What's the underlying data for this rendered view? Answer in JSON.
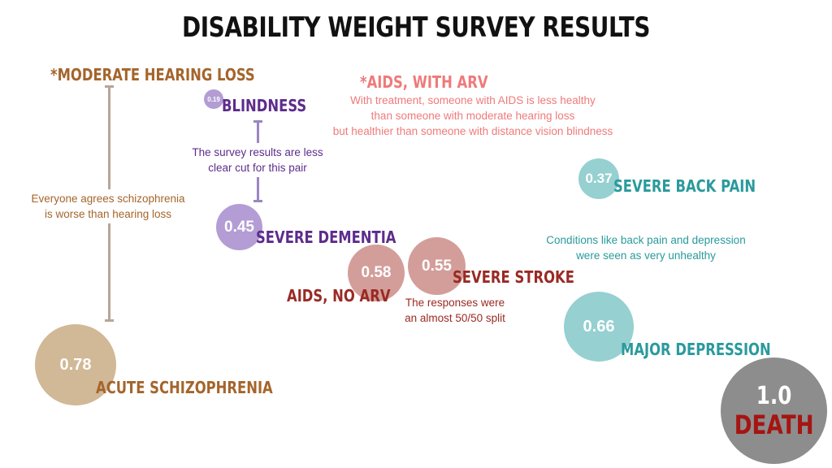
{
  "title": "DISABILITY WEIGHT SURVEY RESULTS",
  "colors": {
    "brown": "#a4652b",
    "brown_circle": "#d1b896",
    "purple": "#5d2c8c",
    "purple_circle": "#b39dd4",
    "red": "#9a2a24",
    "red_circle": "#d39e9a",
    "pink": "#ef7a7a",
    "teal": "#2a9a9c",
    "teal_circle": "#96d0d1",
    "death_circle": "#8d8d8d",
    "death_text": "#a51512"
  },
  "conditions": [
    {
      "id": "moderate-hearing-loss",
      "label": "*MODERATE HEARING LOSS",
      "value": ""
    },
    {
      "id": "blindness",
      "label": "BLINDNESS",
      "value": "0.19"
    },
    {
      "id": "aids-with-arv",
      "label": "*AIDS, WITH ARV",
      "value": ""
    },
    {
      "id": "severe-back-pain",
      "label": "SEVERE BACK PAIN",
      "value": "0.37"
    },
    {
      "id": "severe-dementia",
      "label": "SEVERE DEMENTIA",
      "value": "0.45"
    },
    {
      "id": "aids-no-arv",
      "label": "AIDS, NO ARV",
      "value": "0.58"
    },
    {
      "id": "severe-stroke",
      "label": "SEVERE STROKE",
      "value": "0.55"
    },
    {
      "id": "major-depression",
      "label": "MAJOR DEPRESSION",
      "value": "0.66"
    },
    {
      "id": "acute-schizophrenia",
      "label": "ACUTE SCHIZOPHRENIA",
      "value": "0.78"
    },
    {
      "id": "death",
      "label": "DEATH",
      "value": "1.0"
    }
  ],
  "notes": {
    "aids_with_arv": [
      "With treatment, someone with AIDS is less healthy",
      "than someone with moderate hearing loss",
      "but healthier than someone with distance vision blindness"
    ],
    "blindness_dementia": [
      "The survey results are less",
      "clear cut for this pair"
    ],
    "schizophrenia_hearing": [
      "Everyone agrees schizophrenia",
      "is worse than hearing loss"
    ],
    "back_pain_depression": [
      "Conditions like back pain and depression",
      "were seen as very unhealthy"
    ],
    "aids_stroke": [
      "The responses were",
      "an almost 50/50 split"
    ]
  }
}
